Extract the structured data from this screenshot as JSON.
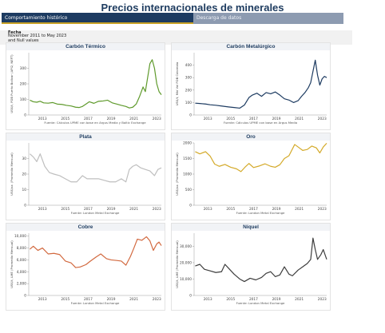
{
  "header": {
    "title": "Precios internacionales de minerales"
  },
  "tabs": [
    {
      "label": "Comportamiento histórico",
      "active": true
    },
    {
      "label": "Descarga de datos",
      "active": false
    }
  ],
  "filter": {
    "label": "Fecha",
    "value": "November 2011 to May 2023\nand Null values"
  },
  "colors": {
    "accent": "#1d3b61",
    "tab_inactive": "#8d9bb1",
    "tab_underline": "#c9a227"
  },
  "chart_data": [
    {
      "type": "line",
      "title": "Carbón Térmico",
      "ylabel": "US$/t, FOB Puerto Bolívar (API2, NEFT)",
      "source": "Fuente: Cálculos UPME con base en Argus Media y Baltic Exchange",
      "color": "#5f9a2c",
      "xlim": [
        2011.8,
        2023.4
      ],
      "ylim": [
        0,
        400
      ],
      "yticks": [
        0,
        100,
        200,
        300
      ],
      "xticks": [
        2013,
        2015,
        2017,
        2019,
        2021,
        2023
      ],
      "x": [
        2011.9,
        2012.2,
        2012.5,
        2012.8,
        2013.1,
        2013.5,
        2013.9,
        2014.3,
        2014.7,
        2015.1,
        2015.5,
        2015.9,
        2016.2,
        2016.5,
        2016.8,
        2017.1,
        2017.5,
        2017.9,
        2018.3,
        2018.7,
        2019.1,
        2019.5,
        2019.9,
        2020.3,
        2020.6,
        2020.9,
        2021.2,
        2021.5,
        2021.8,
        2022.0,
        2022.2,
        2022.4,
        2022.6,
        2022.8,
        2023.0,
        2023.2,
        2023.4
      ],
      "values": [
        95,
        85,
        82,
        88,
        78,
        76,
        80,
        70,
        68,
        62,
        58,
        50,
        48,
        55,
        70,
        85,
        75,
        88,
        90,
        95,
        78,
        70,
        62,
        55,
        45,
        50,
        70,
        120,
        180,
        150,
        240,
        330,
        355,
        300,
        200,
        150,
        130
      ]
    },
    {
      "type": "line",
      "title": "Carbón Metalúrgico",
      "ylabel": "US$/t, Mid Vol FOB Colombia",
      "source": "Fuente: Cálculos UPME con base en Argus Media",
      "color": "#1d3b61",
      "xlim": [
        2011.8,
        2023.4
      ],
      "ylim": [
        0,
        500
      ],
      "yticks": [
        0,
        100,
        200,
        300,
        400
      ],
      "xticks": [
        2013,
        2015,
        2017,
        2019,
        2021,
        2023
      ],
      "x": [
        2011.9,
        2012.3,
        2012.8,
        2013.2,
        2013.7,
        2014.2,
        2014.8,
        2015.3,
        2015.8,
        2016.2,
        2016.6,
        2016.9,
        2017.3,
        2017.7,
        2018.1,
        2018.5,
        2018.9,
        2019.3,
        2019.7,
        2020.1,
        2020.5,
        2020.9,
        2021.2,
        2021.5,
        2021.8,
        2022.0,
        2022.2,
        2022.4,
        2022.6,
        2022.8,
        2023.0,
        2023.2,
        2023.4
      ],
      "values": [
        95,
        92,
        88,
        82,
        78,
        72,
        65,
        60,
        55,
        80,
        140,
        160,
        175,
        150,
        180,
        170,
        185,
        160,
        130,
        120,
        100,
        115,
        150,
        180,
        220,
        260,
        350,
        440,
        320,
        240,
        290,
        310,
        300
      ]
    },
    {
      "type": "line",
      "title": "Plata",
      "ylabel": "US$/oz. (Promedio Mensual)",
      "source": "Fuente: London Metal Exchange",
      "color": "#bfbfbf",
      "xlim": [
        2011.8,
        2023.4
      ],
      "ylim": [
        0,
        40
      ],
      "yticks": [
        0,
        10,
        20,
        30
      ],
      "xticks": [
        2013,
        2015,
        2017,
        2019,
        2021,
        2023
      ],
      "x": [
        2011.9,
        2012.2,
        2012.5,
        2012.8,
        2013.2,
        2013.6,
        2014.0,
        2014.5,
        2015.0,
        2015.5,
        2016.0,
        2016.5,
        2016.9,
        2017.4,
        2017.9,
        2018.4,
        2018.9,
        2019.4,
        2019.9,
        2020.3,
        2020.6,
        2020.9,
        2021.2,
        2021.6,
        2022.0,
        2022.4,
        2022.8,
        2023.1,
        2023.4
      ],
      "values": [
        33,
        31,
        28,
        33,
        25,
        21,
        20,
        19,
        17,
        15,
        15,
        19,
        17,
        17,
        17,
        16,
        15,
        15,
        17,
        15,
        23,
        25,
        26,
        24,
        23,
        22,
        19,
        23,
        24
      ]
    },
    {
      "type": "line",
      "title": "Oro",
      "ylabel": "US$/oz. (Promedio Mensual)",
      "source": "Fuente: London Metal Exchange",
      "color": "#d4aa2a",
      "xlim": [
        2011.8,
        2023.4
      ],
      "ylim": [
        0,
        2000
      ],
      "yticks": [
        0,
        500,
        1000,
        1500,
        2000
      ],
      "xticks": [
        2013,
        2015,
        2017,
        2019,
        2021,
        2023
      ],
      "x": [
        2011.9,
        2012.3,
        2012.8,
        2013.2,
        2013.6,
        2014.0,
        2014.5,
        2015.0,
        2015.5,
        2015.9,
        2016.3,
        2016.6,
        2017.0,
        2017.5,
        2018.0,
        2018.5,
        2018.9,
        2019.3,
        2019.7,
        2020.1,
        2020.6,
        2020.9,
        2021.3,
        2021.7,
        2022.1,
        2022.5,
        2022.8,
        2023.1,
        2023.4
      ],
      "values": [
        1720,
        1650,
        1720,
        1580,
        1320,
        1250,
        1310,
        1220,
        1170,
        1080,
        1240,
        1340,
        1210,
        1260,
        1330,
        1250,
        1220,
        1300,
        1500,
        1590,
        1950,
        1870,
        1760,
        1790,
        1900,
        1840,
        1680,
        1870,
        1990
      ]
    },
    {
      "type": "line",
      "title": "Cobre",
      "ylabel": "US$/t, LME (Promedio Mensual)",
      "source": "Fuente: London Metal Exchange",
      "color": "#d2693f",
      "xlim": [
        2011.8,
        2023.4
      ],
      "ylim": [
        0,
        10500
      ],
      "yticks": [
        0,
        2000,
        4000,
        6000,
        8000,
        10000
      ],
      "ytickLabels": [
        "0",
        "2,000",
        "4,000",
        "6,000",
        "8,000",
        "10,000"
      ],
      "xticks": [
        2013,
        2015,
        2017,
        2019,
        2021,
        2023
      ],
      "x": [
        2011.9,
        2012.2,
        2012.6,
        2013.0,
        2013.5,
        2014.0,
        2014.5,
        2015.0,
        2015.5,
        2015.9,
        2016.3,
        2016.8,
        2017.2,
        2017.7,
        2018.1,
        2018.6,
        2019.0,
        2019.5,
        2019.9,
        2020.3,
        2020.7,
        2021.0,
        2021.3,
        2021.7,
        2022.1,
        2022.4,
        2022.7,
        2023.0,
        2023.2,
        2023.4
      ],
      "values": [
        7800,
        8300,
        7600,
        8000,
        7000,
        7100,
        6900,
        5800,
        5500,
        4700,
        4800,
        5200,
        5800,
        6500,
        7000,
        6200,
        6000,
        5900,
        5800,
        5100,
        6600,
        8000,
        9500,
        9300,
        9900,
        9200,
        7600,
        8700,
        9000,
        8400
      ]
    },
    {
      "type": "line",
      "title": "Níquel",
      "ylabel": "US$/t, LME (Promedio Mensual)",
      "source": "Fuente: London Metal Exchange",
      "color": "#3d3d3d",
      "xlim": [
        2011.8,
        2023.4
      ],
      "ylim": [
        0,
        38000
      ],
      "yticks": [
        0,
        10000,
        20000,
        30000
      ],
      "ytickLabels": [
        "0",
        "10,000",
        "20,000",
        "30,000"
      ],
      "xticks": [
        2013,
        2015,
        2017,
        2019,
        2021,
        2023
      ],
      "x": [
        2011.9,
        2012.3,
        2012.7,
        2013.2,
        2013.7,
        2014.2,
        2014.5,
        2014.9,
        2015.3,
        2015.8,
        2016.2,
        2016.7,
        2017.2,
        2017.7,
        2018.1,
        2018.5,
        2018.9,
        2019.3,
        2019.7,
        2020.1,
        2020.4,
        2020.9,
        2021.3,
        2021.7,
        2022.0,
        2022.2,
        2022.4,
        2022.6,
        2022.9,
        2023.1,
        2023.4
      ],
      "values": [
        18000,
        19000,
        16000,
        15000,
        14000,
        14500,
        19000,
        16000,
        13000,
        10000,
        8500,
        10500,
        9500,
        11000,
        13500,
        14500,
        11500,
        12500,
        17500,
        13000,
        12000,
        15500,
        17500,
        19500,
        22000,
        35000,
        28000,
        22000,
        25000,
        28000,
        22000
      ]
    }
  ]
}
